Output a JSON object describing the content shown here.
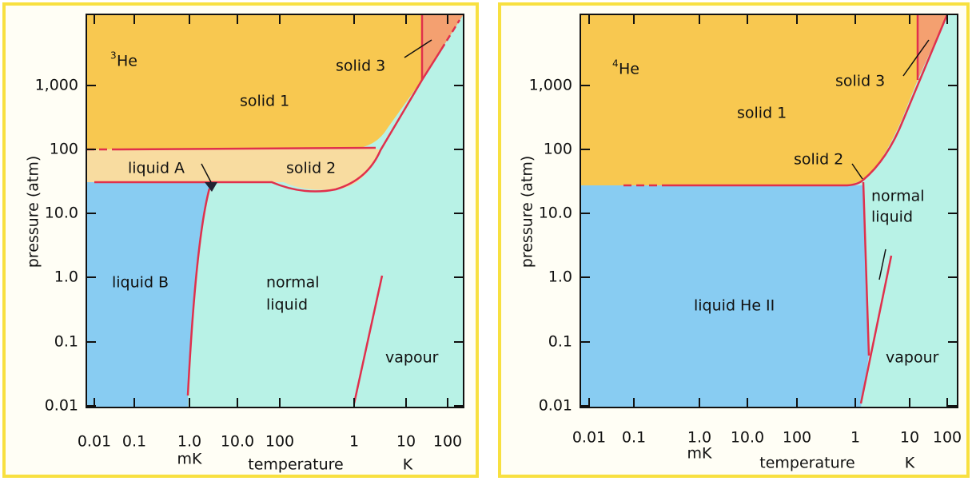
{
  "panels": [
    {
      "element": {
        "mass": "3",
        "symbol": "He"
      },
      "y_axis": {
        "label": "pressure (atm)",
        "ticks": [
          "1,000",
          "100",
          "10.0",
          "1.0",
          "0.1",
          "0.01"
        ]
      },
      "x_axis": {
        "label": "temperature",
        "ticks": [
          "0.01",
          "0.1",
          "1.0",
          "10.0",
          "100",
          "1",
          "10",
          "100"
        ],
        "units": [
          "mK",
          "K"
        ]
      },
      "regions": {
        "solid_1": "solid 1",
        "solid_2": "solid 2",
        "solid_3": "solid 3",
        "liquid_a": "liquid A",
        "liquid_b": "liquid B",
        "normal_liquid": [
          "normal",
          "liquid"
        ],
        "vapour": "vapour"
      }
    },
    {
      "element": {
        "mass": "4",
        "symbol": "He"
      },
      "y_axis": {
        "label": "pressure (atm)",
        "ticks": [
          "1,000",
          "100",
          "10.0",
          "1.0",
          "0.1",
          "0.01"
        ]
      },
      "x_axis": {
        "label": "temperature",
        "ticks": [
          "0.01",
          "0.1",
          "1.0",
          "10.0",
          "100",
          "1",
          "10",
          "100"
        ],
        "units": [
          "mK",
          "K"
        ]
      },
      "regions": {
        "solid_1": "solid 1",
        "solid_2": "solid 2",
        "solid_3": "solid 3",
        "normal_liquid": [
          "normal",
          "liquid"
        ],
        "liquid_he_ii": "liquid He II",
        "vapour": "vapour"
      }
    }
  ]
}
